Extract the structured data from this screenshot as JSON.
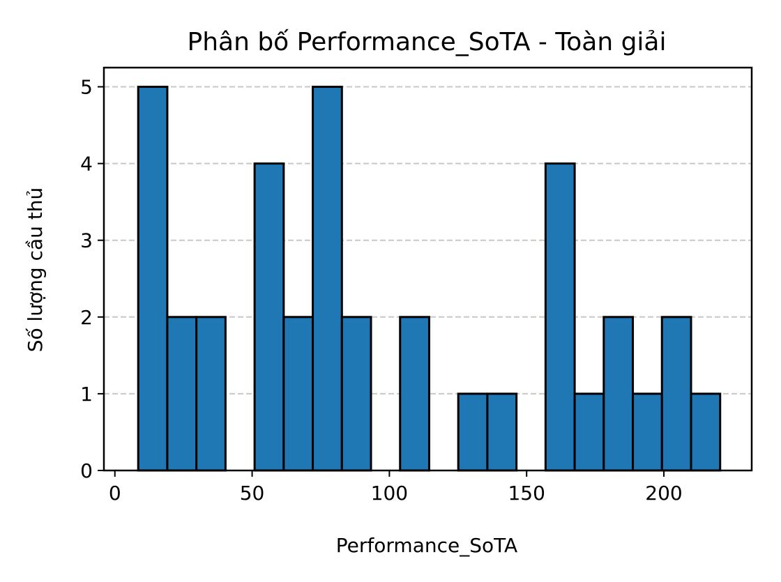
{
  "chart_data": {
    "type": "bar",
    "title": "Phân bố Performance_SoTA - Toàn giải",
    "xlabel": "Performance_SoTA",
    "ylabel": "Số lượng cầu thủ",
    "xlim": [
      -4,
      232
    ],
    "ylim": [
      0,
      5.25
    ],
    "x_ticks": [
      0,
      50,
      100,
      150,
      200
    ],
    "y_ticks": [
      0,
      1,
      2,
      3,
      4,
      5
    ],
    "grid": "y-dashed",
    "bar_color": "#1f77b4",
    "edge_color": "#000000",
    "bins": [
      {
        "start": 8.5,
        "end": 19.1,
        "count": 5
      },
      {
        "start": 19.1,
        "end": 29.7,
        "count": 2
      },
      {
        "start": 29.7,
        "end": 40.3,
        "count": 2
      },
      {
        "start": 40.3,
        "end": 50.9,
        "count": 0
      },
      {
        "start": 50.9,
        "end": 61.5,
        "count": 4
      },
      {
        "start": 61.5,
        "end": 72.1,
        "count": 2
      },
      {
        "start": 72.1,
        "end": 82.7,
        "count": 5
      },
      {
        "start": 82.7,
        "end": 93.3,
        "count": 2
      },
      {
        "start": 93.3,
        "end": 103.9,
        "count": 0
      },
      {
        "start": 103.9,
        "end": 114.5,
        "count": 2
      },
      {
        "start": 114.5,
        "end": 125.1,
        "count": 0
      },
      {
        "start": 125.1,
        "end": 135.7,
        "count": 1
      },
      {
        "start": 135.7,
        "end": 146.3,
        "count": 1
      },
      {
        "start": 146.3,
        "end": 156.9,
        "count": 0
      },
      {
        "start": 156.9,
        "end": 167.5,
        "count": 4
      },
      {
        "start": 167.5,
        "end": 178.1,
        "count": 1
      },
      {
        "start": 178.1,
        "end": 188.7,
        "count": 2
      },
      {
        "start": 188.7,
        "end": 199.3,
        "count": 1
      },
      {
        "start": 199.3,
        "end": 209.9,
        "count": 2
      },
      {
        "start": 209.9,
        "end": 220.5,
        "count": 1
      }
    ]
  }
}
